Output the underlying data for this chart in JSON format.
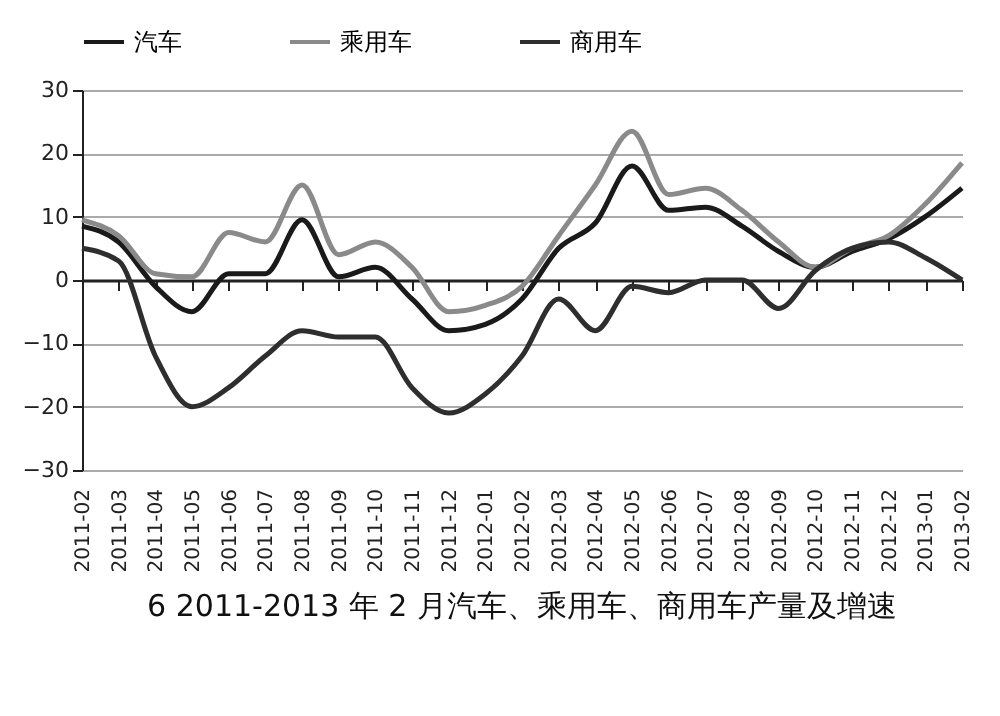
{
  "chart_data": {
    "type": "line",
    "title": "6 2011-2013 年 2 月汽车、乘用车、商用车产量及增速",
    "categories": [
      "2011-02",
      "2011-03",
      "2011-04",
      "2011-05",
      "2011-06",
      "2011-07",
      "2011-08",
      "2011-09",
      "2011-10",
      "2011-11",
      "2011-12",
      "2012-01",
      "2012-02",
      "2012-03",
      "2012-04",
      "2012-05",
      "2012-06",
      "2012-07",
      "2012-08",
      "2012-09",
      "2012-10",
      "2012-11",
      "2012-12",
      "2013-01",
      "2013-02"
    ],
    "series": [
      {
        "name": "汽车",
        "color": "#1a1a1a",
        "values": [
          8.5,
          6,
          -1,
          -5,
          1,
          1,
          9.5,
          0.5,
          2,
          -3,
          -8,
          -7,
          -3,
          5,
          9,
          18,
          11,
          11.5,
          8.5,
          4.5,
          2,
          4.5,
          6.5,
          10,
          14.5
        ]
      },
      {
        "name": "乘用车",
        "color": "#8a8a8a",
        "values": [
          9.5,
          7,
          1,
          0.5,
          7.5,
          6,
          15,
          4,
          6,
          2,
          -5,
          -4,
          -1,
          7,
          15,
          23.5,
          13.5,
          14.5,
          11,
          6,
          2,
          5,
          7,
          12,
          18.5
        ]
      },
      {
        "name": "商用车",
        "color": "#2e2e2e",
        "values": [
          5,
          3,
          -12,
          -20,
          -17,
          -12,
          -8,
          -9,
          -9,
          -17,
          -21,
          -18,
          -12,
          -3,
          -8,
          -1,
          -2,
          0,
          0,
          -4.5,
          1.5,
          5,
          6,
          3.5,
          0
        ]
      }
    ],
    "ylim": [
      -30,
      30
    ],
    "yticks": [
      -30,
      -20,
      -10,
      0,
      10,
      20,
      30
    ],
    "grid": "y",
    "legend": "top",
    "marker": "none",
    "line_style": "solid"
  }
}
